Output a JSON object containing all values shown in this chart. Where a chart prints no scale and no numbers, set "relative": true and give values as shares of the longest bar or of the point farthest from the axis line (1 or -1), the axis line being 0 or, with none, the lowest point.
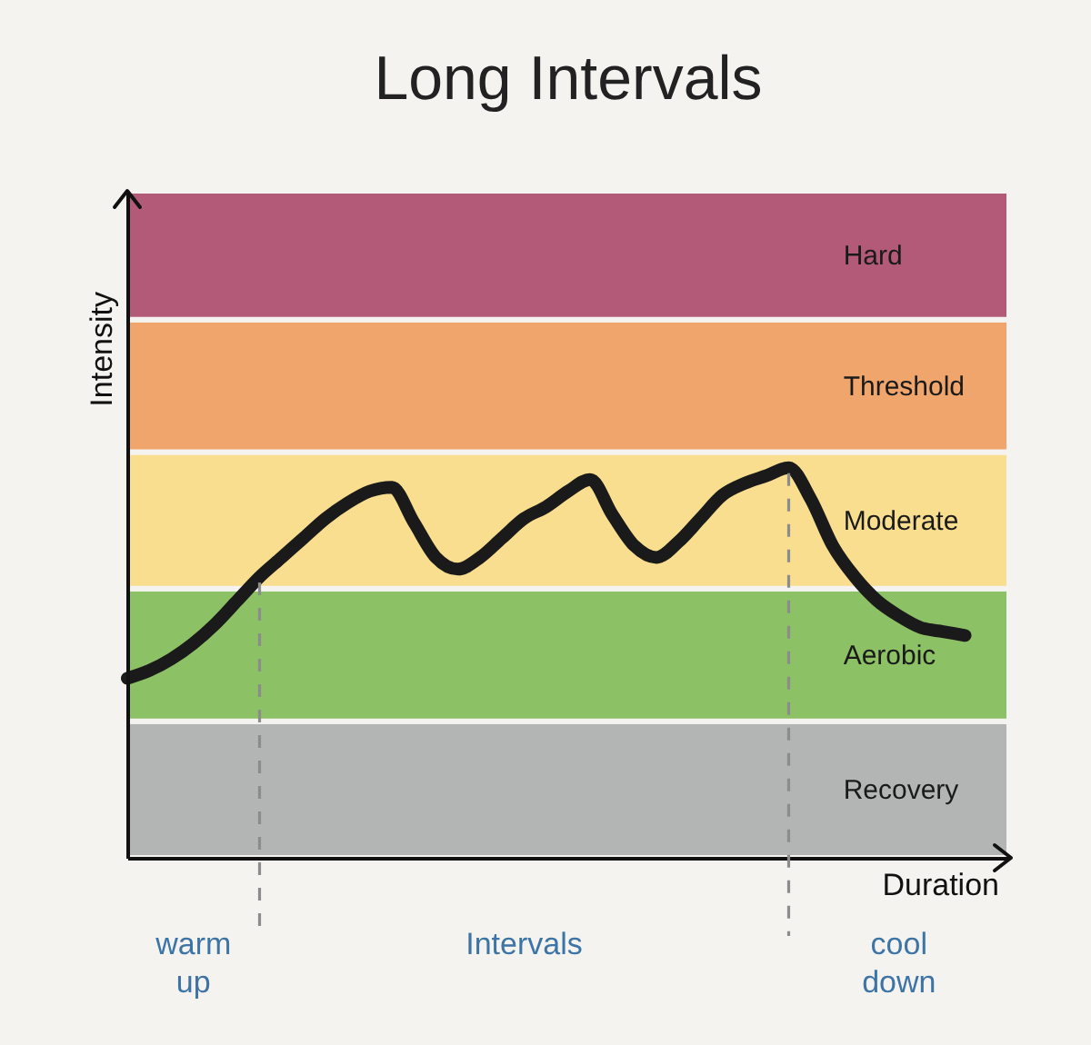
{
  "chart_data": {
    "type": "line",
    "title": "Long Intervals",
    "xlabel": "Duration",
    "ylabel": "Intensity",
    "relative": true,
    "categories": [
      null,
      null,
      null,
      null,
      null,
      null,
      null,
      null,
      null,
      null,
      null,
      null,
      null,
      null,
      null,
      null,
      null,
      null,
      null,
      null,
      null,
      null,
      null,
      null,
      null,
      null,
      null,
      null,
      null,
      null,
      null,
      null,
      null,
      null,
      null,
      null,
      null,
      null,
      null,
      null,
      null
    ],
    "values": [
      0.46,
      0.48,
      0.51,
      0.55,
      0.6,
      0.66,
      0.72,
      0.77,
      0.82,
      0.87,
      0.91,
      0.94,
      0.95,
      0.86,
      0.77,
      0.74,
      0.77,
      0.82,
      0.87,
      0.9,
      0.94,
      0.97,
      0.88,
      0.8,
      0.77,
      0.81,
      0.87,
      0.93,
      0.96,
      0.98,
      1,
      0.92,
      0.8,
      0.72,
      0.66,
      0.62,
      0.59,
      0.58,
      0.57,
      null,
      null
    ],
    "color": "#1a1a1a",
    "line_style": "solid",
    "bands": [
      {
        "axis": "y",
        "from": 0,
        "to": 0.35,
        "label": "Recovery",
        "color": "#b3b4b4"
      },
      {
        "axis": "y",
        "from": 0.35,
        "to": 0.69,
        "label": "Aerobic",
        "color": "#8dc165"
      },
      {
        "axis": "y",
        "from": 0.69,
        "to": 1.04,
        "label": "Moderate",
        "color": "#f8de8e"
      },
      {
        "axis": "y",
        "from": 1.04,
        "to": 1.38,
        "label": "Threshold",
        "color": "#f0a56d"
      },
      {
        "axis": "y",
        "from": 1.38,
        "to": 1.71,
        "label": "Hard",
        "color": "#b35a78"
      }
    ],
    "annotations": [
      "warm up",
      "Intervals",
      "cool down"
    ]
  }
}
